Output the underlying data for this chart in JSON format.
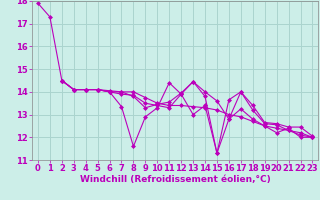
{
  "background_color": "#cceee8",
  "grid_color": "#aad4ce",
  "line_color": "#bb00bb",
  "marker_style": "D",
  "marker_size": 2.0,
  "xlabel": "Windchill (Refroidissement éolien,°C)",
  "xlabel_fontsize": 6.5,
  "tick_fontsize": 6.0,
  "xlim": [
    -0.5,
    23.5
  ],
  "ylim": [
    11,
    18
  ],
  "yticks": [
    11,
    12,
    13,
    14,
    15,
    16,
    17,
    18
  ],
  "xticks": [
    0,
    1,
    2,
    3,
    4,
    5,
    6,
    7,
    8,
    9,
    10,
    11,
    12,
    13,
    14,
    15,
    16,
    17,
    18,
    19,
    20,
    21,
    22,
    23
  ],
  "lines": [
    {
      "x": [
        0,
        1,
        2,
        3,
        4,
        5,
        6,
        7,
        8,
        9,
        10,
        11,
        12,
        13,
        14,
        15,
        16,
        17,
        18,
        19,
        20,
        21,
        22,
        23
      ],
      "y": [
        17.9,
        17.3,
        14.5,
        14.1,
        14.1,
        14.1,
        14.0,
        13.35,
        11.6,
        12.9,
        13.3,
        14.4,
        13.9,
        13.0,
        13.4,
        11.3,
        12.8,
        13.25,
        12.8,
        12.5,
        12.2,
        12.4,
        12.0,
        12.0
      ]
    },
    {
      "x": [
        2,
        3,
        4,
        5,
        6,
        7,
        8,
        9,
        10,
        11,
        12,
        13,
        14,
        15,
        16,
        17,
        18,
        19,
        20,
        21,
        22,
        23
      ],
      "y": [
        14.5,
        14.1,
        14.1,
        14.1,
        14.05,
        14.0,
        14.0,
        13.75,
        13.5,
        13.4,
        13.4,
        13.35,
        13.3,
        13.2,
        13.0,
        12.9,
        12.7,
        12.5,
        12.4,
        12.3,
        12.1,
        12.0
      ]
    },
    {
      "x": [
        2,
        3,
        4,
        5,
        6,
        7,
        8,
        9,
        10,
        11,
        12,
        13,
        14,
        15,
        16,
        17,
        18,
        19,
        20,
        21,
        22,
        23
      ],
      "y": [
        14.5,
        14.1,
        14.1,
        14.1,
        14.0,
        13.9,
        13.85,
        13.5,
        13.4,
        13.3,
        13.9,
        14.45,
        14.0,
        13.6,
        12.8,
        14.0,
        13.2,
        12.6,
        12.55,
        12.3,
        12.2,
        12.0
      ]
    },
    {
      "x": [
        2,
        3,
        4,
        5,
        6,
        7,
        8,
        9,
        10,
        11,
        12,
        13,
        14,
        15,
        16,
        17,
        18,
        19,
        20,
        21,
        22,
        23
      ],
      "y": [
        14.5,
        14.1,
        14.1,
        14.1,
        14.0,
        14.0,
        13.8,
        13.3,
        13.45,
        13.55,
        13.95,
        14.45,
        13.8,
        11.3,
        13.65,
        14.0,
        13.4,
        12.65,
        12.6,
        12.45,
        12.45,
        12.05
      ]
    }
  ]
}
